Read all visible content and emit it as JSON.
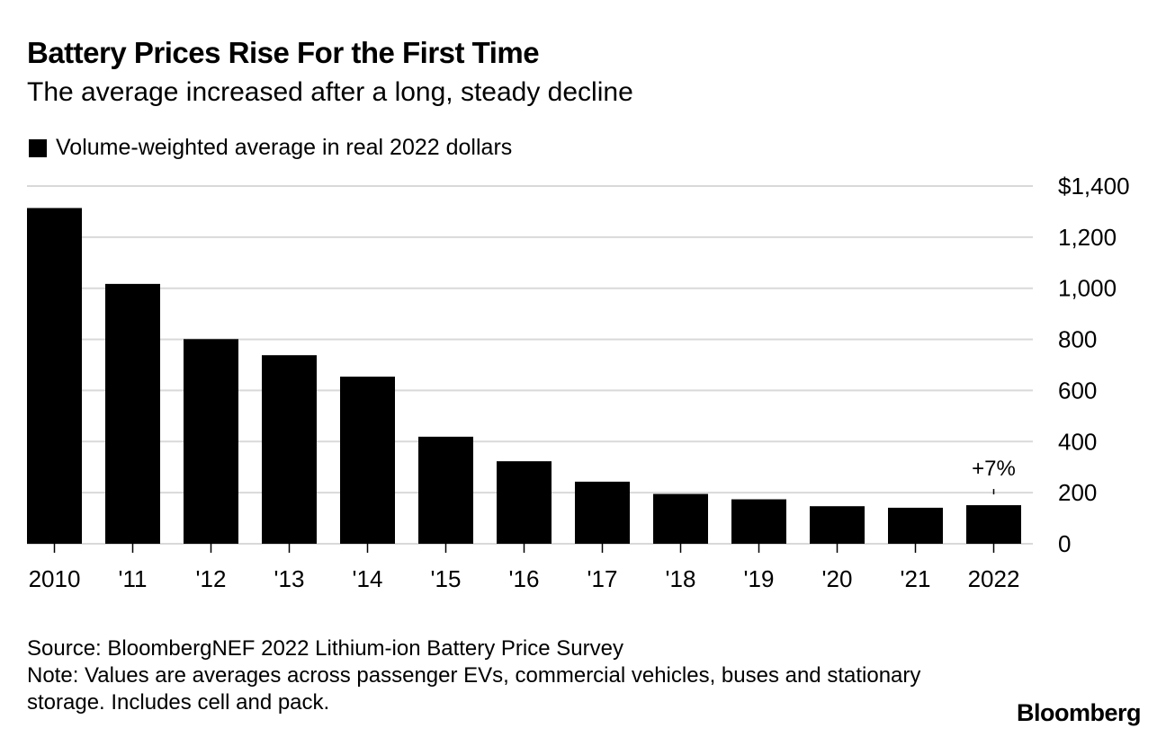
{
  "header": {
    "title": "Battery Prices Rise For the First Time",
    "subtitle": "The average increased after a long, steady decline"
  },
  "legend": {
    "label": "Volume-weighted average in real 2022 dollars"
  },
  "footer": {
    "source": "Source: BloombergNEF 2022 Lithium-ion Battery Price Survey",
    "note": "Note: Values are averages across passenger EVs, commercial vehicles, buses and stationary storage. Includes cell and pack.",
    "logo": "Bloomberg"
  },
  "chart_data": {
    "type": "bar",
    "title": "Battery Prices Rise For the First Time",
    "subtitle": "The average increased after a long, steady decline",
    "categories": [
      "2010",
      "'11",
      "'12",
      "'13",
      "'14",
      "'15",
      "'16",
      "'17",
      "'18",
      "'19",
      "'20",
      "'21",
      "2022"
    ],
    "series": [
      {
        "name": "Volume-weighted average in real 2022 dollars",
        "values": [
          1314,
          1017,
          801,
          738,
          654,
          419,
          323,
          243,
          195,
          174,
          147,
          141,
          151
        ]
      }
    ],
    "ylim": [
      0,
      1400
    ],
    "yticks": [
      0,
      200,
      400,
      600,
      800,
      1000,
      1200,
      1400
    ],
    "ytick_labels": [
      "0",
      "200",
      "400",
      "600",
      "800",
      "1,000",
      "1,200",
      "$1,400"
    ],
    "y_axis_position": "right",
    "grid": true,
    "bar_color": "#000000",
    "grid_color": "#d9d9d9",
    "annotations": [
      {
        "category": "2022",
        "text": "+7%"
      }
    ]
  }
}
